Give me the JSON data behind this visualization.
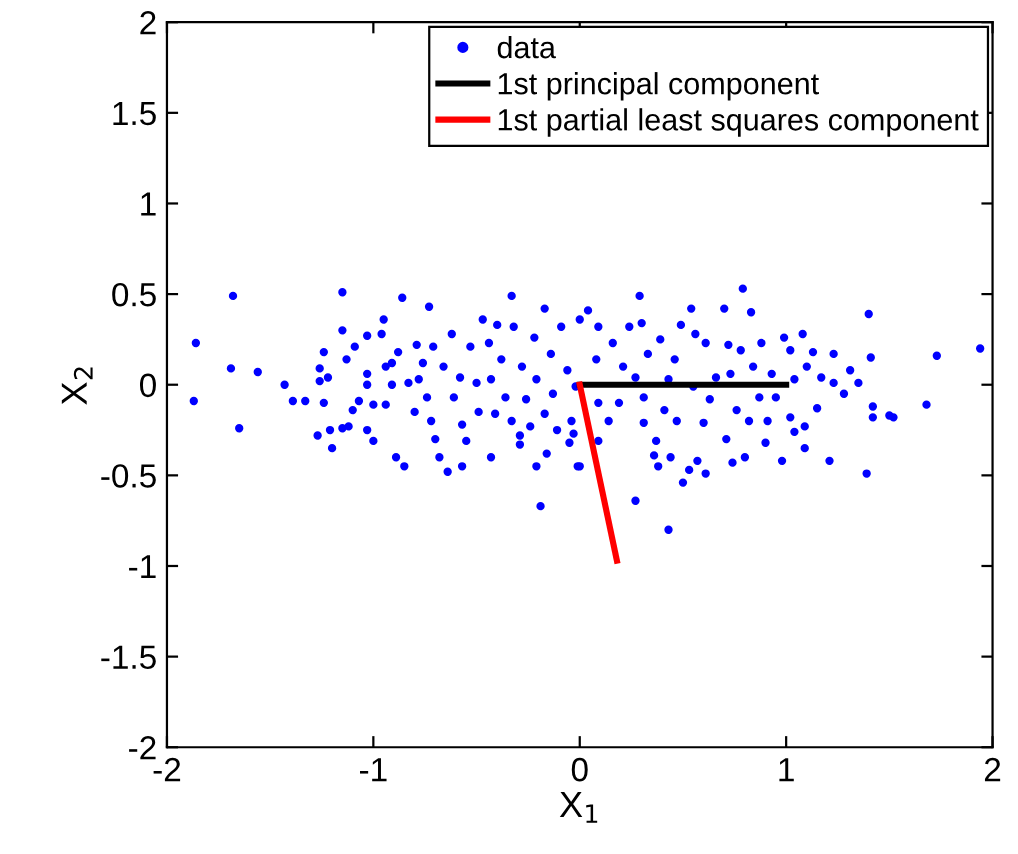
{
  "chart_data": {
    "type": "scatter",
    "xlabel": "X$_{1}$",
    "ylabel": "X$_{2}$",
    "xlim": [
      -2,
      2
    ],
    "ylim": [
      -2,
      2
    ],
    "xticks": [
      -2,
      -1,
      0,
      1,
      2
    ],
    "yticks": [
      -2,
      -1.5,
      -1,
      -0.5,
      0,
      0.5,
      1,
      1.5,
      2
    ],
    "grid": false,
    "legend": "top right",
    "series": [
      {
        "name": "data",
        "marker": "circle",
        "color": "#0000ff",
        "x": [
          -1.86,
          -1.87,
          -1.68,
          -1.69,
          -1.65,
          -1.56,
          -1.43,
          -1.39,
          -1.33,
          -1.27,
          -1.26,
          -1.26,
          -1.24,
          -1.24,
          -1.2,
          -1.21,
          -1.22,
          -1.15,
          -1.15,
          -1.13,
          -1.15,
          -1.12,
          -1.09,
          -1.07,
          -1.1,
          -1.03,
          -1.0,
          -1.03,
          -1.03,
          -1.03,
          -0.95,
          -0.96,
          -1.0,
          -0.94,
          -0.91,
          -0.94,
          -0.91,
          -0.89,
          -0.86,
          -0.85,
          -0.88,
          -0.83,
          -0.8,
          -0.79,
          -0.78,
          -0.76,
          -0.73,
          -0.74,
          -0.72,
          -0.7,
          -0.71,
          -0.68,
          -0.64,
          -0.66,
          -0.62,
          -0.61,
          -0.57,
          -0.57,
          -0.58,
          -0.55,
          -0.53,
          -0.5,
          -0.49,
          -0.47,
          -0.43,
          -0.44,
          -0.43,
          -0.41,
          -0.4,
          -0.38,
          -0.36,
          -0.33,
          -0.33,
          -0.32,
          -0.29,
          -0.29,
          -0.28,
          -0.26,
          -0.24,
          -0.22,
          -0.21,
          -0.21,
          -0.19,
          -0.17,
          -0.17,
          -0.16,
          -0.14,
          -0.13,
          -0.11,
          -0.09,
          -0.06,
          -0.05,
          -0.04,
          -0.02,
          -0.01,
          0.0,
          -0.03,
          0.0,
          0.04,
          0.09,
          0.08,
          0.09,
          0.09,
          0.14,
          0.16,
          0.19,
          0.21,
          0.24,
          0.27,
          0.29,
          0.3,
          0.27,
          0.31,
          0.31,
          0.33,
          0.36,
          0.37,
          0.38,
          0.39,
          0.41,
          0.43,
          0.43,
          0.44,
          0.46,
          0.47,
          0.49,
          0.5,
          0.53,
          0.54,
          0.55,
          0.56,
          0.57,
          0.6,
          0.61,
          0.61,
          0.63,
          0.66,
          0.7,
          0.71,
          0.72,
          0.73,
          0.74,
          0.76,
          0.78,
          0.79,
          0.8,
          0.82,
          0.83,
          0.84,
          0.87,
          0.88,
          0.9,
          0.91,
          0.93,
          0.95,
          0.98,
          0.99,
          1.02,
          1.02,
          1.04,
          1.04,
          1.08,
          1.09,
          1.09,
          1.1,
          1.13,
          1.15,
          1.17,
          1.21,
          1.23,
          1.23,
          1.28,
          1.31,
          1.35,
          1.39,
          1.4,
          1.41,
          1.42,
          1.42,
          1.5,
          1.52,
          1.68,
          1.73,
          1.94
        ],
        "values": [
          0.23,
          -0.09,
          0.49,
          0.09,
          -0.24,
          0.07,
          0.0,
          -0.09,
          -0.09,
          -0.28,
          0.09,
          0.02,
          -0.1,
          0.18,
          -0.35,
          -0.25,
          0.04,
          0.51,
          0.3,
          0.14,
          -0.24,
          -0.23,
          0.21,
          -0.09,
          -0.14,
          -0.25,
          -0.31,
          0.06,
          0.0,
          0.27,
          0.36,
          0.28,
          -0.11,
          -0.11,
          0.0,
          0.1,
          0.12,
          -0.4,
          0.48,
          -0.45,
          0.18,
          0.01,
          -0.15,
          0.22,
          0.03,
          0.12,
          0.43,
          -0.07,
          -0.2,
          -0.3,
          0.21,
          -0.4,
          -0.48,
          0.1,
          0.28,
          -0.07,
          -0.22,
          -0.45,
          0.04,
          -0.31,
          0.21,
          0.01,
          -0.15,
          0.36,
          -0.4,
          0.23,
          0.03,
          -0.16,
          0.33,
          0.14,
          -0.07,
          0.49,
          -0.2,
          0.32,
          -0.28,
          -0.33,
          0.1,
          -0.08,
          -0.23,
          0.26,
          -0.45,
          0.03,
          -0.67,
          0.42,
          -0.16,
          -0.38,
          0.17,
          -0.05,
          -0.25,
          0.32,
          0.08,
          -0.32,
          -0.2,
          -0.01,
          -0.45,
          -0.45,
          -0.27,
          0.36,
          0.41,
          0.32,
          0.14,
          -0.1,
          -0.31,
          -0.2,
          0.23,
          -0.1,
          0.1,
          0.32,
          -0.64,
          0.49,
          0.34,
          0.04,
          -0.07,
          -0.21,
          0.17,
          -0.39,
          -0.31,
          -0.45,
          0.25,
          -0.14,
          0.03,
          -0.8,
          -0.4,
          0.14,
          -0.2,
          0.33,
          -0.54,
          -0.47,
          0.42,
          -0.01,
          0.28,
          -0.42,
          -0.21,
          -0.49,
          0.23,
          -0.08,
          0.04,
          0.42,
          -0.3,
          0.22,
          0.06,
          -0.43,
          -0.14,
          0.19,
          0.53,
          -0.4,
          -0.2,
          0.4,
          0.1,
          -0.07,
          0.23,
          -0.32,
          -0.2,
          0.06,
          -0.07,
          -0.42,
          0.26,
          -0.18,
          0.19,
          0.03,
          -0.26,
          0.28,
          -0.35,
          -0.23,
          0.1,
          0.18,
          -0.13,
          0.04,
          -0.42,
          0.17,
          0.01,
          -0.05,
          0.08,
          0.01,
          -0.49,
          0.39,
          0.15,
          -0.12,
          -0.18,
          -0.17,
          -0.18,
          -0.11,
          0.16,
          0.2
        ]
      },
      {
        "name": "1st principal component",
        "type": "line",
        "marker": "none",
        "line_style": "solid",
        "color": "#000000",
        "x": [
          0,
          1
        ],
        "values": [
          0,
          0
        ]
      },
      {
        "name": "1st partial least squares component",
        "type": "line",
        "marker": "none",
        "line_style": "solid",
        "color": "#ff0000",
        "x": [
          0,
          0.18
        ],
        "values": [
          0,
          -0.97
        ]
      }
    ]
  }
}
